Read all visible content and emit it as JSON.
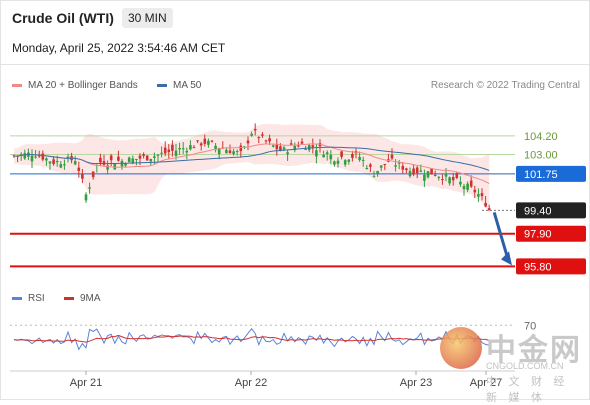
{
  "header": {
    "title": "Crude Oil (WTI)",
    "timeframe": "30 MIN",
    "datetime": "Monday, April 25, 2022 3:54:46 AM CET"
  },
  "legend": {
    "ma20_bb": "MA 20 + Bollinger Bands",
    "ma50": "MA 50",
    "rsi": "RSI",
    "ma9": "9MA"
  },
  "copyright": "Research © 2022 Trading Central",
  "watermark": {
    "big": "中金网",
    "site": "CNGOLD.COM.CN",
    "sub": "中 文 财 经 新 媒 体"
  },
  "chart_data": {
    "type": "candlestick",
    "x_ticks": [
      "Apr 21",
      "Apr 22",
      "Apr 23",
      "Apr 27"
    ],
    "y_range": [
      94.6,
      106.7
    ],
    "levels": [
      {
        "label": "104.20",
        "value": 104.2,
        "color": "#b6d7a0",
        "kind": "resistance"
      },
      {
        "label": "103.00",
        "value": 103.0,
        "color": "#b6d7a0",
        "kind": "resistance"
      },
      {
        "label": "101.75",
        "value": 101.75,
        "color": "#1a6ad8",
        "kind": "pivot"
      },
      {
        "label": "99.40",
        "value": 99.4,
        "color": "#333333",
        "kind": "last"
      },
      {
        "label": "97.90",
        "value": 97.9,
        "color": "#e01010",
        "kind": "support"
      },
      {
        "label": "95.80",
        "value": 95.8,
        "color": "#e01010",
        "kind": "support"
      }
    ],
    "arrow": {
      "from": 99.4,
      "to": 95.8
    },
    "rsi": {
      "level_label": "70",
      "level": 70
    }
  },
  "colors": {
    "up": "#2e9e3e",
    "down": "#d0312d",
    "ma20": "#f08a8a",
    "ma50": "#3a6ea5",
    "bb": "#fde0e0",
    "rsi": "#5b84d6",
    "ma9": "#d0312d"
  }
}
